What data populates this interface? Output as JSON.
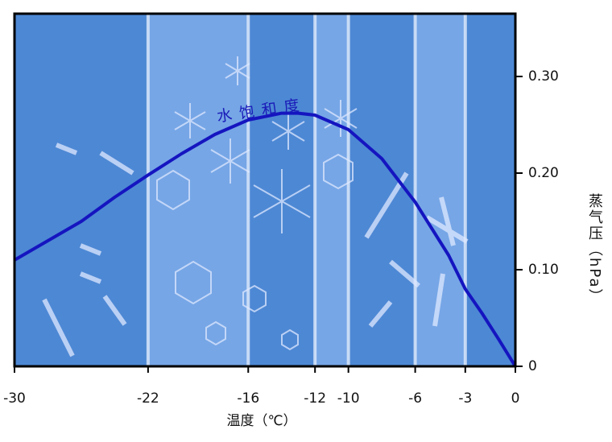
{
  "chart_data": {
    "type": "line",
    "annotation": "水饱和度",
    "x_label": "温度（℃）",
    "y_label": "蒸气压（hPa）",
    "x": [
      -30,
      -28,
      -26,
      -24,
      -22,
      -20,
      -18,
      -16,
      -14,
      -13,
      -12,
      -10,
      -8,
      -6,
      -4,
      -3,
      -2,
      -1,
      0
    ],
    "series": [
      {
        "color": "#1515c0",
        "values": [
          0.11,
          0.13,
          0.15,
          0.175,
          0.198,
          0.22,
          0.24,
          0.255,
          0.262,
          0.262,
          0.26,
          0.245,
          0.215,
          0.17,
          0.115,
          0.08,
          0.055,
          0.028,
          0
        ]
      }
    ],
    "xlim": [
      -30,
      0
    ],
    "ylim": [
      0,
      0.365
    ],
    "xticks": [
      -30,
      -22,
      -16,
      -12,
      -10,
      -6,
      -3,
      0
    ],
    "yticks": [
      0,
      {
        "value": 0.1,
        "label": "0.10"
      },
      {
        "value": 0.2,
        "label": "0.20"
      },
      {
        "value": 0.3,
        "label": "0.30"
      }
    ],
    "band_colors": [
      "#4d88d4",
      "#76a6e6"
    ]
  }
}
